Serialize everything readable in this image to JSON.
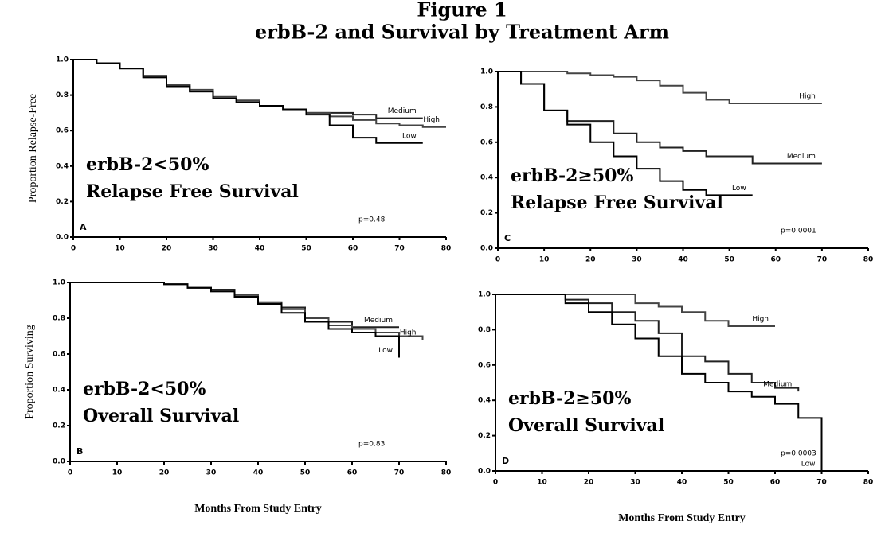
{
  "title": "Figure 1",
  "subtitle": "erbB-2 and Survival by Treatment Arm",
  "chart_data": [
    {
      "type": "line",
      "step": true,
      "panel": "A",
      "ylabel": "Proportion Relapse-Free",
      "annotations": [
        "erbB-2<50%",
        "Relapse Free Survival"
      ],
      "p_value": "p=0.48",
      "x": [
        0,
        5,
        10,
        15,
        20,
        25,
        30,
        35,
        40,
        45,
        50,
        55,
        60,
        65,
        70,
        75,
        80
      ],
      "series": [
        {
          "name": "Medium",
          "color": "#222222",
          "values": [
            1,
            0.98,
            0.95,
            0.9,
            0.86,
            0.82,
            0.79,
            0.76,
            0.74,
            0.72,
            0.7,
            0.7,
            0.69,
            0.67,
            0.67,
            0.67,
            null
          ]
        },
        {
          "name": "High",
          "color": "#444444",
          "values": [
            1,
            0.98,
            0.95,
            0.91,
            0.86,
            0.83,
            0.79,
            0.77,
            0.74,
            0.72,
            0.7,
            0.68,
            0.66,
            0.64,
            0.63,
            0.62,
            0.62
          ]
        },
        {
          "name": "Low",
          "color": "#000000",
          "values": [
            1,
            0.98,
            0.95,
            0.9,
            0.85,
            0.82,
            0.78,
            0.76,
            0.74,
            0.72,
            0.69,
            0.63,
            0.56,
            0.53,
            0.53,
            0.53,
            null
          ]
        }
      ],
      "xlim": [
        0,
        80
      ],
      "xticks": [
        0,
        10,
        20,
        30,
        40,
        50,
        60,
        70,
        80
      ],
      "ylim": [
        0,
        1
      ],
      "yticks": [
        {
          "value": 0,
          "label": "0.0"
        },
        0.2,
        0.4,
        0.6,
        0.8,
        {
          "value": 1,
          "label": "1.0"
        }
      ]
    },
    {
      "type": "line",
      "step": true,
      "panel": "C",
      "annotations": [
        "erbB-2≥50%",
        "Relapse Free Survival"
      ],
      "p_value": "p=0.0001",
      "x": [
        0,
        5,
        10,
        15,
        20,
        25,
        30,
        35,
        40,
        45,
        50,
        55,
        60,
        65,
        70,
        75,
        80
      ],
      "series": [
        {
          "name": "High",
          "color": "#444444",
          "values": [
            1,
            1,
            1,
            0.99,
            0.98,
            0.97,
            0.95,
            0.92,
            0.88,
            0.84,
            0.82,
            0.82,
            0.82,
            0.82,
            0.82,
            null,
            null
          ]
        },
        {
          "name": "Medium",
          "color": "#222222",
          "values": [
            1,
            0.93,
            0.78,
            0.72,
            0.72,
            0.65,
            0.6,
            0.57,
            0.55,
            0.52,
            0.52,
            0.48,
            0.48,
            0.48,
            0.48,
            null,
            null
          ]
        },
        {
          "name": "Low",
          "color": "#000000",
          "values": [
            1,
            0.93,
            0.78,
            0.7,
            0.6,
            0.52,
            0.45,
            0.38,
            0.33,
            0.3,
            0.3,
            0.3,
            null,
            null,
            null,
            null,
            null
          ]
        }
      ],
      "xlim": [
        0,
        80
      ],
      "xticks": [
        0,
        10,
        20,
        30,
        40,
        50,
        60,
        70,
        80
      ],
      "ylim": [
        0,
        1
      ],
      "yticks": [
        {
          "value": 0,
          "label": "0.0"
        },
        0.2,
        0.4,
        0.6,
        0.8,
        {
          "value": 1,
          "label": "1.0"
        }
      ]
    },
    {
      "type": "line",
      "step": true,
      "panel": "B",
      "ylabel": "Proportion Surviving",
      "xlabel": "Months From Study Entry",
      "annotations": [
        "erbB-2<50%",
        "Overall Survival"
      ],
      "p_value": "p=0.83",
      "x": [
        0,
        5,
        10,
        15,
        20,
        25,
        30,
        35,
        40,
        45,
        50,
        55,
        60,
        65,
        70,
        75,
        80
      ],
      "series": [
        {
          "name": "Medium",
          "color": "#222222",
          "values": [
            1,
            1,
            1,
            1,
            0.99,
            0.97,
            0.96,
            0.93,
            0.89,
            0.86,
            0.8,
            0.78,
            0.75,
            0.75,
            0.75,
            null,
            null
          ]
        },
        {
          "name": "High",
          "color": "#444444",
          "values": [
            1,
            1,
            1,
            1,
            0.99,
            0.97,
            0.95,
            0.93,
            0.88,
            0.85,
            0.8,
            0.76,
            0.74,
            0.72,
            0.7,
            0.68,
            null
          ]
        },
        {
          "name": "Low",
          "color": "#000000",
          "values": [
            1,
            1,
            1,
            1,
            0.99,
            0.97,
            0.95,
            0.92,
            0.88,
            0.83,
            0.78,
            0.74,
            0.72,
            0.7,
            0.58,
            null,
            null
          ]
        }
      ],
      "xlim": [
        0,
        80
      ],
      "xticks": [
        0,
        10,
        20,
        30,
        40,
        50,
        60,
        70,
        80
      ],
      "ylim": [
        0,
        1
      ],
      "yticks": [
        {
          "value": 0,
          "label": "0.0"
        },
        0.2,
        0.4,
        0.6,
        0.8,
        {
          "value": 1,
          "label": "1.0"
        }
      ]
    },
    {
      "type": "line",
      "step": true,
      "panel": "D",
      "xlabel": "Months From Study Entry",
      "annotations": [
        "erbB-2≥50%",
        "Overall Survival"
      ],
      "p_value": "p=0.0003",
      "x": [
        0,
        5,
        10,
        15,
        20,
        25,
        30,
        35,
        40,
        45,
        50,
        55,
        60,
        65,
        70,
        75,
        80
      ],
      "series": [
        {
          "name": "High",
          "color": "#444444",
          "values": [
            1,
            1,
            1,
            1,
            1,
            1,
            0.95,
            0.93,
            0.9,
            0.85,
            0.82,
            0.82,
            0.82,
            null,
            null,
            null,
            null
          ]
        },
        {
          "name": "Medium",
          "color": "#222222",
          "values": [
            1,
            1,
            1,
            0.97,
            0.95,
            0.9,
            0.85,
            0.78,
            0.65,
            0.62,
            0.55,
            0.5,
            0.47,
            0.45,
            null,
            null,
            null
          ]
        },
        {
          "name": "Low",
          "color": "#000000",
          "values": [
            1,
            1,
            1,
            0.95,
            0.9,
            0.83,
            0.75,
            0.65,
            0.55,
            0.5,
            0.45,
            0.42,
            0.38,
            0.3,
            0,
            null,
            null
          ]
        }
      ],
      "xlim": [
        0,
        80
      ],
      "xticks": [
        0,
        10,
        20,
        30,
        40,
        50,
        60,
        70,
        80
      ],
      "ylim": [
        0,
        1
      ],
      "yticks": [
        {
          "value": 0,
          "label": "0.0"
        },
        0.2,
        0.4,
        0.6,
        0.8,
        {
          "value": 1,
          "label": "1.0"
        }
      ]
    }
  ]
}
